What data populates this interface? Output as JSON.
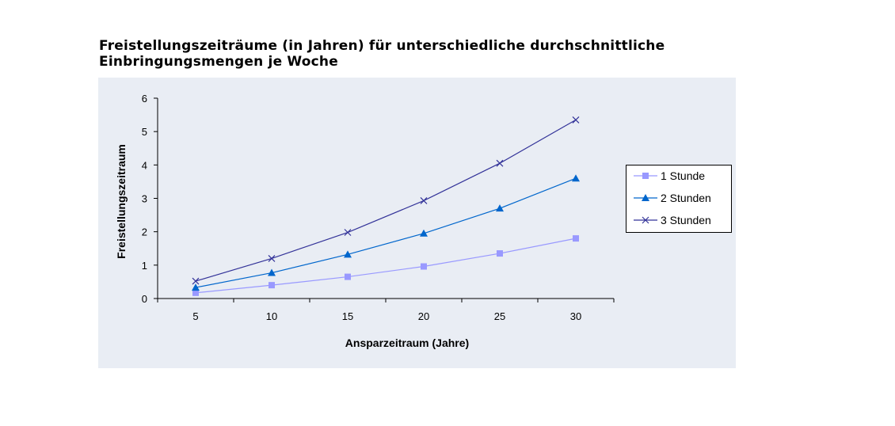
{
  "chart_data": {
    "type": "line",
    "title_lines": [
      "Freistellungszeiträume (in Jahren) für unterschiedliche durchschnittliche",
      "Einbringungsmengen je Woche"
    ],
    "xlabel": "Ansparzeitraum (Jahre)",
    "ylabel": "Freistellungszeitraum",
    "x": [
      5,
      10,
      15,
      20,
      25,
      30
    ],
    "ylim": [
      0,
      6
    ],
    "yticks": [
      0,
      1,
      2,
      3,
      4,
      5,
      6
    ],
    "grid": false,
    "legend_position": "right",
    "series": [
      {
        "name": "1 Stunde",
        "values": [
          0.17,
          0.4,
          0.65,
          0.96,
          1.35,
          1.8
        ],
        "color": "#9999ff",
        "marker": "square"
      },
      {
        "name": "2 Stunden",
        "values": [
          0.33,
          0.77,
          1.32,
          1.95,
          2.7,
          3.6
        ],
        "color": "#0066cc",
        "marker": "triangle"
      },
      {
        "name": "3 Stunden",
        "values": [
          0.52,
          1.2,
          1.98,
          2.93,
          4.05,
          5.35
        ],
        "color": "#333399",
        "marker": "x"
      }
    ],
    "plot_background": "#e9edf4"
  }
}
